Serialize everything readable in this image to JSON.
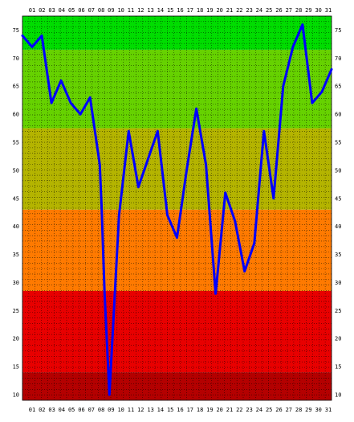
{
  "chart_data": {
    "type": "line",
    "x": [
      "01",
      "02",
      "03",
      "04",
      "05",
      "06",
      "07",
      "08",
      "09",
      "10",
      "11",
      "12",
      "13",
      "14",
      "15",
      "16",
      "17",
      "18",
      "19",
      "20",
      "21",
      "22",
      "23",
      "24",
      "25",
      "26",
      "27",
      "28",
      "29",
      "30",
      "31"
    ],
    "series": [
      {
        "points": [
          {
            "x": 1.0,
            "y": 74
          },
          {
            "x": 2.0,
            "y": 72
          },
          {
            "x": 3.0,
            "y": 74
          },
          {
            "x": 4.0,
            "y": 62
          },
          {
            "x": 5.0,
            "y": 66
          },
          {
            "x": 6.0,
            "y": 62
          },
          {
            "x": 7.0,
            "y": 60
          },
          {
            "x": 8.0,
            "y": 63
          },
          {
            "x": 9.0,
            "y": 51
          },
          {
            "x": 9.2,
            "y": 43
          },
          {
            "x": 9.5,
            "y": 28
          },
          {
            "x": 10.0,
            "y": 10
          },
          {
            "x": 11.0,
            "y": 42
          },
          {
            "x": 12.0,
            "y": 57
          },
          {
            "x": 13.0,
            "y": 47
          },
          {
            "x": 14.0,
            "y": 52
          },
          {
            "x": 15.0,
            "y": 57
          },
          {
            "x": 16.0,
            "y": 42
          },
          {
            "x": 17.0,
            "y": 38
          },
          {
            "x": 18.0,
            "y": 50
          },
          {
            "x": 19.0,
            "y": 61
          },
          {
            "x": 20.0,
            "y": 51
          },
          {
            "x": 21.0,
            "y": 28
          },
          {
            "x": 22.0,
            "y": 46
          },
          {
            "x": 23.0,
            "y": 41
          },
          {
            "x": 24.0,
            "y": 32
          },
          {
            "x": 25.0,
            "y": 37
          },
          {
            "x": 26.0,
            "y": 57
          },
          {
            "x": 27.0,
            "y": 45
          },
          {
            "x": 28.0,
            "y": 65
          },
          {
            "x": 29.0,
            "y": 72
          },
          {
            "x": 30.0,
            "y": 76
          },
          {
            "x": 31.0,
            "y": 62
          },
          {
            "x": 32.0,
            "y": 64
          },
          {
            "x": 33.0,
            "y": 68
          }
        ]
      }
    ],
    "xlim": [
      1,
      33
    ],
    "ylim": [
      9,
      77.5
    ],
    "yticks": [
      10,
      15,
      20,
      25,
      30,
      35,
      40,
      45,
      50,
      55,
      60,
      65,
      70,
      75
    ],
    "bands": [
      {
        "from": 9,
        "to": 14,
        "color": "#b40000"
      },
      {
        "from": 14,
        "to": 28.5,
        "color": "#e80000"
      },
      {
        "from": 28.5,
        "to": 43,
        "color": "#ff7a00"
      },
      {
        "from": 43,
        "to": 57.5,
        "color": "#b4b400"
      },
      {
        "from": 57.5,
        "to": 71.5,
        "color": "#66d200"
      },
      {
        "from": 71.5,
        "to": 77.5,
        "color": "#00dd00"
      }
    ],
    "line_color": "#0000ff",
    "grid": true,
    "title": "",
    "xlabel": "",
    "ylabel": ""
  }
}
